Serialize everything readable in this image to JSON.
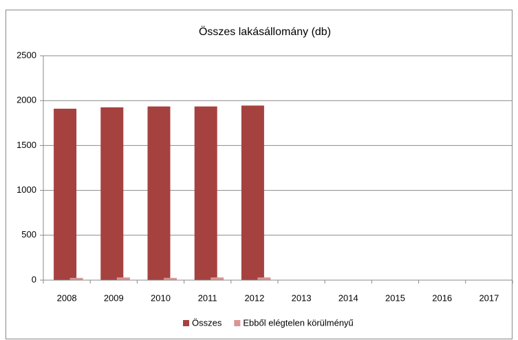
{
  "chart_data": {
    "type": "bar",
    "title": "Összes lakásállomány (db)",
    "categories": [
      "2008",
      "2009",
      "2010",
      "2011",
      "2012",
      "2013",
      "2014",
      "2015",
      "2016",
      "2017"
    ],
    "series": [
      {
        "name": "Összes",
        "color": "#a5423f",
        "values": [
          1910,
          1925,
          1935,
          1935,
          1945,
          null,
          null,
          null,
          null,
          null
        ]
      },
      {
        "name": "Ebből elégtelen körülményű",
        "color": "#d99694",
        "values": [
          25,
          30,
          25,
          30,
          30,
          null,
          null,
          null,
          null,
          null
        ]
      }
    ],
    "ylim": [
      0,
      2500
    ],
    "yticks": [
      0,
      500,
      1000,
      1500,
      2000,
      2500
    ],
    "grid": true,
    "legend": "bottom"
  }
}
